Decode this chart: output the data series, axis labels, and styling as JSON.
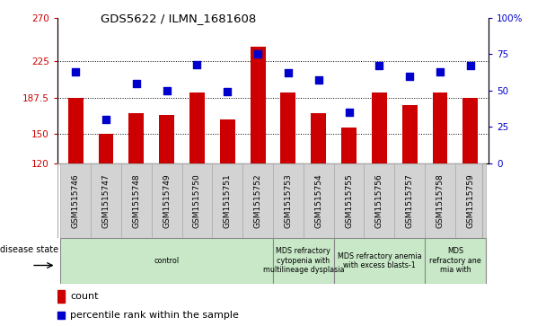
{
  "title": "GDS5622 / ILMN_1681608",
  "samples": [
    "GSM1515746",
    "GSM1515747",
    "GSM1515748",
    "GSM1515749",
    "GSM1515750",
    "GSM1515751",
    "GSM1515752",
    "GSM1515753",
    "GSM1515754",
    "GSM1515755",
    "GSM1515756",
    "GSM1515757",
    "GSM1515758",
    "GSM1515759"
  ],
  "counts": [
    187.5,
    150,
    172,
    170,
    193,
    165,
    240,
    193,
    172,
    157,
    193,
    180,
    193,
    187
  ],
  "percentiles": [
    63,
    30,
    55,
    50,
    68,
    49,
    75,
    62,
    57,
    35,
    67,
    60,
    63,
    67
  ],
  "disease_groups": [
    {
      "label": "control",
      "start": 0,
      "end": 7
    },
    {
      "label": "MDS refractory\ncytopenia with\nmultilineage dysplasia",
      "start": 7,
      "end": 9
    },
    {
      "label": "MDS refractory anemia\nwith excess blasts-1",
      "start": 9,
      "end": 12
    },
    {
      "label": "MDS\nrefractory ane\nmia with",
      "start": 12,
      "end": 14
    }
  ],
  "bar_color": "#cc0000",
  "dot_color": "#0000cc",
  "ylim_left": [
    120,
    270
  ],
  "ylim_right": [
    0,
    100
  ],
  "yticks_left": [
    120,
    150,
    187.5,
    225,
    270
  ],
  "ytick_labels_left": [
    "120",
    "150",
    "187.5",
    "225",
    "270"
  ],
  "yticks_right": [
    0,
    25,
    50,
    75,
    100
  ],
  "ytick_labels_right": [
    "0",
    "25",
    "50",
    "75",
    "100%"
  ],
  "bar_width": 0.5,
  "dot_size": 35,
  "disease_label": "disease state",
  "legend_count": "count",
  "legend_percentile": "percentile rank within the sample",
  "cell_color": "#d3d3d3",
  "cell_edge_color": "#aaaaaa",
  "group_color": "#c8e8c8",
  "group_edge_color": "#888888"
}
